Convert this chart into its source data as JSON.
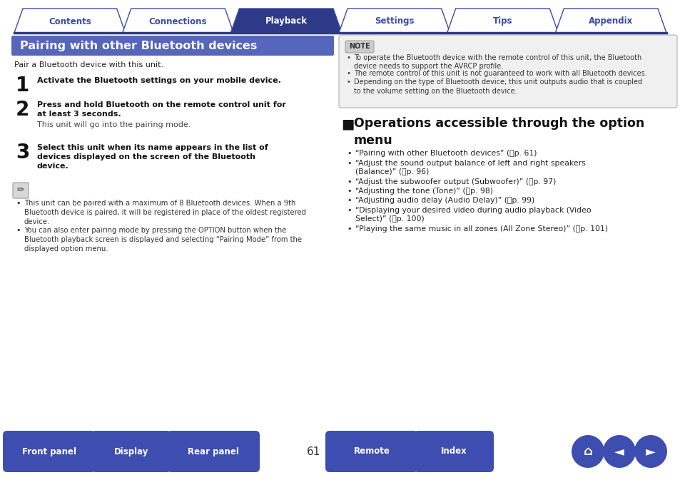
{
  "bg_color": "#ffffff",
  "tab_labels": [
    "Contents",
    "Connections",
    "Playback",
    "Settings",
    "Tips",
    "Appendix"
  ],
  "active_tab": 2,
  "tab_color_active": "#2e3a87",
  "tab_color_inactive": "#ffffff",
  "tab_text_color_active": "#ffffff",
  "tab_text_color_inactive": "#3a4aaa",
  "tab_border_color": "#3a4aaa",
  "header_bg": "#5566bb",
  "header_text": "Pairing with other Bluetooth devices",
  "header_text_color": "#ffffff",
  "intro_text": "Pair a Bluetooth device with this unit.",
  "steps": [
    {
      "num": "1",
      "bold": "Activate the Bluetooth settings on your mobile device.",
      "normal": ""
    },
    {
      "num": "2",
      "bold": "Press and hold Bluetooth on the remote control unit for\nat least 3 seconds.",
      "normal": "This unit will go into the pairing mode."
    },
    {
      "num": "3",
      "bold": "Select this unit when its name appears in the list of\ndevices displayed on the screen of the Bluetooth\ndevice.",
      "normal": ""
    }
  ],
  "note_bullets": [
    "This unit can be paired with a maximum of 8 Bluetooth devices. When a 9th\nBluetooth device is paired, it will be registered in place of the oldest registered\ndevice.",
    "You can also enter pairing mode by pressing the OPTION button when the\nBluetooth playback screen is displayed and selecting “Pairing Mode” from the\ndisplayed option menu."
  ],
  "note_box_label": "NOTE",
  "note_box_bullets": [
    "To operate the Bluetooth device with the remote control of this unit, the Bluetooth\ndevice needs to support the AVRCP profile.",
    "The remote control of this unit is not guaranteed to work with all Bluetooth devices.",
    "Depending on the type of Bluetooth device, this unit outputs audio that is coupled\nto the volume setting on the Bluetooth device."
  ],
  "right_bullets": [
    "“Pairing with other Bluetooth devices” (⨃p. 61)",
    "“Adjust the sound output balance of left and right speakers\n(Balance)” (⨃p. 96)",
    "“Adjust the subwoofer output (Subwoofer)” (⨃p. 97)",
    "“Adjusting the tone (Tone)” (⨃p. 98)",
    "“Adjusting audio delay (Audio Delay)” (⨃p. 99)",
    "“Displaying your desired video during audio playback (Video\nSelect)” (⨃p. 100)",
    "“Playing the same music in all zones (All Zone Stereo)” (⨃p. 101)"
  ],
  "bottom_btn_color": "#3d4db0",
  "bottom_btn_text_color": "#ffffff",
  "page_number": "61",
  "divider_color": "#2e3a87"
}
